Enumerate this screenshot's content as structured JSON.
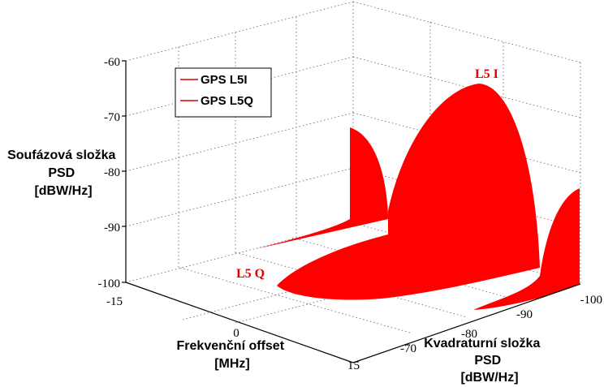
{
  "chart_data": {
    "type": "area",
    "series": [
      {
        "name": "GPS L5I",
        "center_x_dBW": -85,
        "peak_psd_dBW": -64,
        "main_lobe_halfwidth_MHz": 10.23,
        "floor_psd_dBW": -100
      },
      {
        "name": "GPS L5Q",
        "center_x_dBW": -85,
        "peak_psd_dBW": -64,
        "main_lobe_halfwidth_MHz": 10.23,
        "floor_psd_dBW": -100
      }
    ],
    "axes": {
      "z": {
        "label_lines": [
          "Soufázová složka",
          "PSD",
          "[dBW/Hz]"
        ],
        "ticks": [
          "-60",
          "-70",
          "-80",
          "-90",
          "-100"
        ],
        "range": [
          -100,
          -60
        ]
      },
      "y": {
        "label_lines": [
          "Frekvenční offset",
          "[MHz]"
        ],
        "ticks": [
          "-15",
          "0",
          "15"
        ],
        "range": [
          -15,
          15
        ]
      },
      "x": {
        "label_lines": [
          "Kvadraturní složka",
          "PSD",
          "[dBW/Hz]"
        ],
        "ticks": [
          "-70",
          "-80",
          "-90",
          "-100"
        ],
        "range": [
          -100,
          -70
        ]
      }
    },
    "legend": {
      "position": "top-left",
      "entries": [
        "GPS L5I",
        "GPS L5Q"
      ]
    },
    "annotations": [
      "L5 I",
      "L5 Q"
    ],
    "grid": true,
    "colors": {
      "surface": "#ff0000",
      "legend_line": "#e00000"
    }
  }
}
